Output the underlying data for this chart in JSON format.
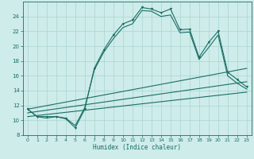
{
  "xlabel": "Humidex (Indice chaleur)",
  "bg_color": "#ceecea",
  "grid_color": "#aad4d0",
  "line_color": "#1a6e65",
  "xlim": [
    -0.5,
    23.5
  ],
  "ylim": [
    8,
    26
  ],
  "yticks": [
    8,
    10,
    12,
    14,
    16,
    18,
    20,
    22,
    24
  ],
  "xticks": [
    0,
    1,
    2,
    3,
    4,
    5,
    6,
    7,
    8,
    9,
    10,
    11,
    12,
    13,
    14,
    15,
    16,
    17,
    18,
    19,
    20,
    21,
    22,
    23
  ],
  "main_line_x": [
    0,
    1,
    2,
    3,
    4,
    5,
    6,
    7,
    8,
    9,
    10,
    11,
    12,
    13,
    14,
    15,
    16,
    17,
    18,
    19,
    20,
    21,
    22,
    23
  ],
  "main_line_y": [
    11.5,
    10.5,
    10.5,
    10.5,
    10.2,
    9.0,
    11.5,
    17.0,
    19.5,
    21.5,
    23.0,
    23.5,
    25.2,
    25.0,
    24.5,
    25.0,
    22.2,
    22.3,
    18.5,
    20.5,
    22.0,
    16.5,
    15.5,
    14.5
  ],
  "line2_x": [
    0,
    1,
    2,
    3,
    4,
    5,
    6,
    7,
    8,
    9,
    10,
    11,
    12,
    13,
    14,
    15,
    16,
    17,
    18,
    19,
    20,
    21,
    22,
    23
  ],
  "line2_y": [
    11.5,
    10.5,
    10.3,
    10.5,
    10.3,
    9.3,
    11.7,
    16.8,
    19.2,
    21.0,
    22.5,
    23.0,
    24.8,
    24.7,
    24.0,
    24.2,
    21.8,
    21.9,
    18.2,
    19.8,
    21.5,
    16.0,
    15.0,
    14.2
  ],
  "line3_x": [
    0,
    23
  ],
  "line3_y": [
    11.5,
    17.0
  ],
  "line4_x": [
    0,
    23
  ],
  "line4_y": [
    11.0,
    15.2
  ],
  "line5_x": [
    0,
    23
  ],
  "line5_y": [
    10.5,
    13.8
  ]
}
